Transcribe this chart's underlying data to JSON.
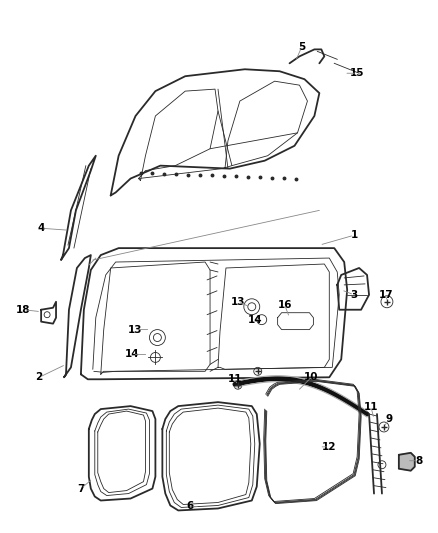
{
  "background_color": "#ffffff",
  "line_color": "#2a2a2a",
  "gray_color": "#888888",
  "light_gray": "#cccccc",
  "figsize": [
    4.38,
    5.33
  ],
  "dpi": 100,
  "label_fontsize": 7.5,
  "label_color": "#000000",
  "lw_main": 1.3,
  "lw_thin": 0.6,
  "lw_med": 0.9
}
